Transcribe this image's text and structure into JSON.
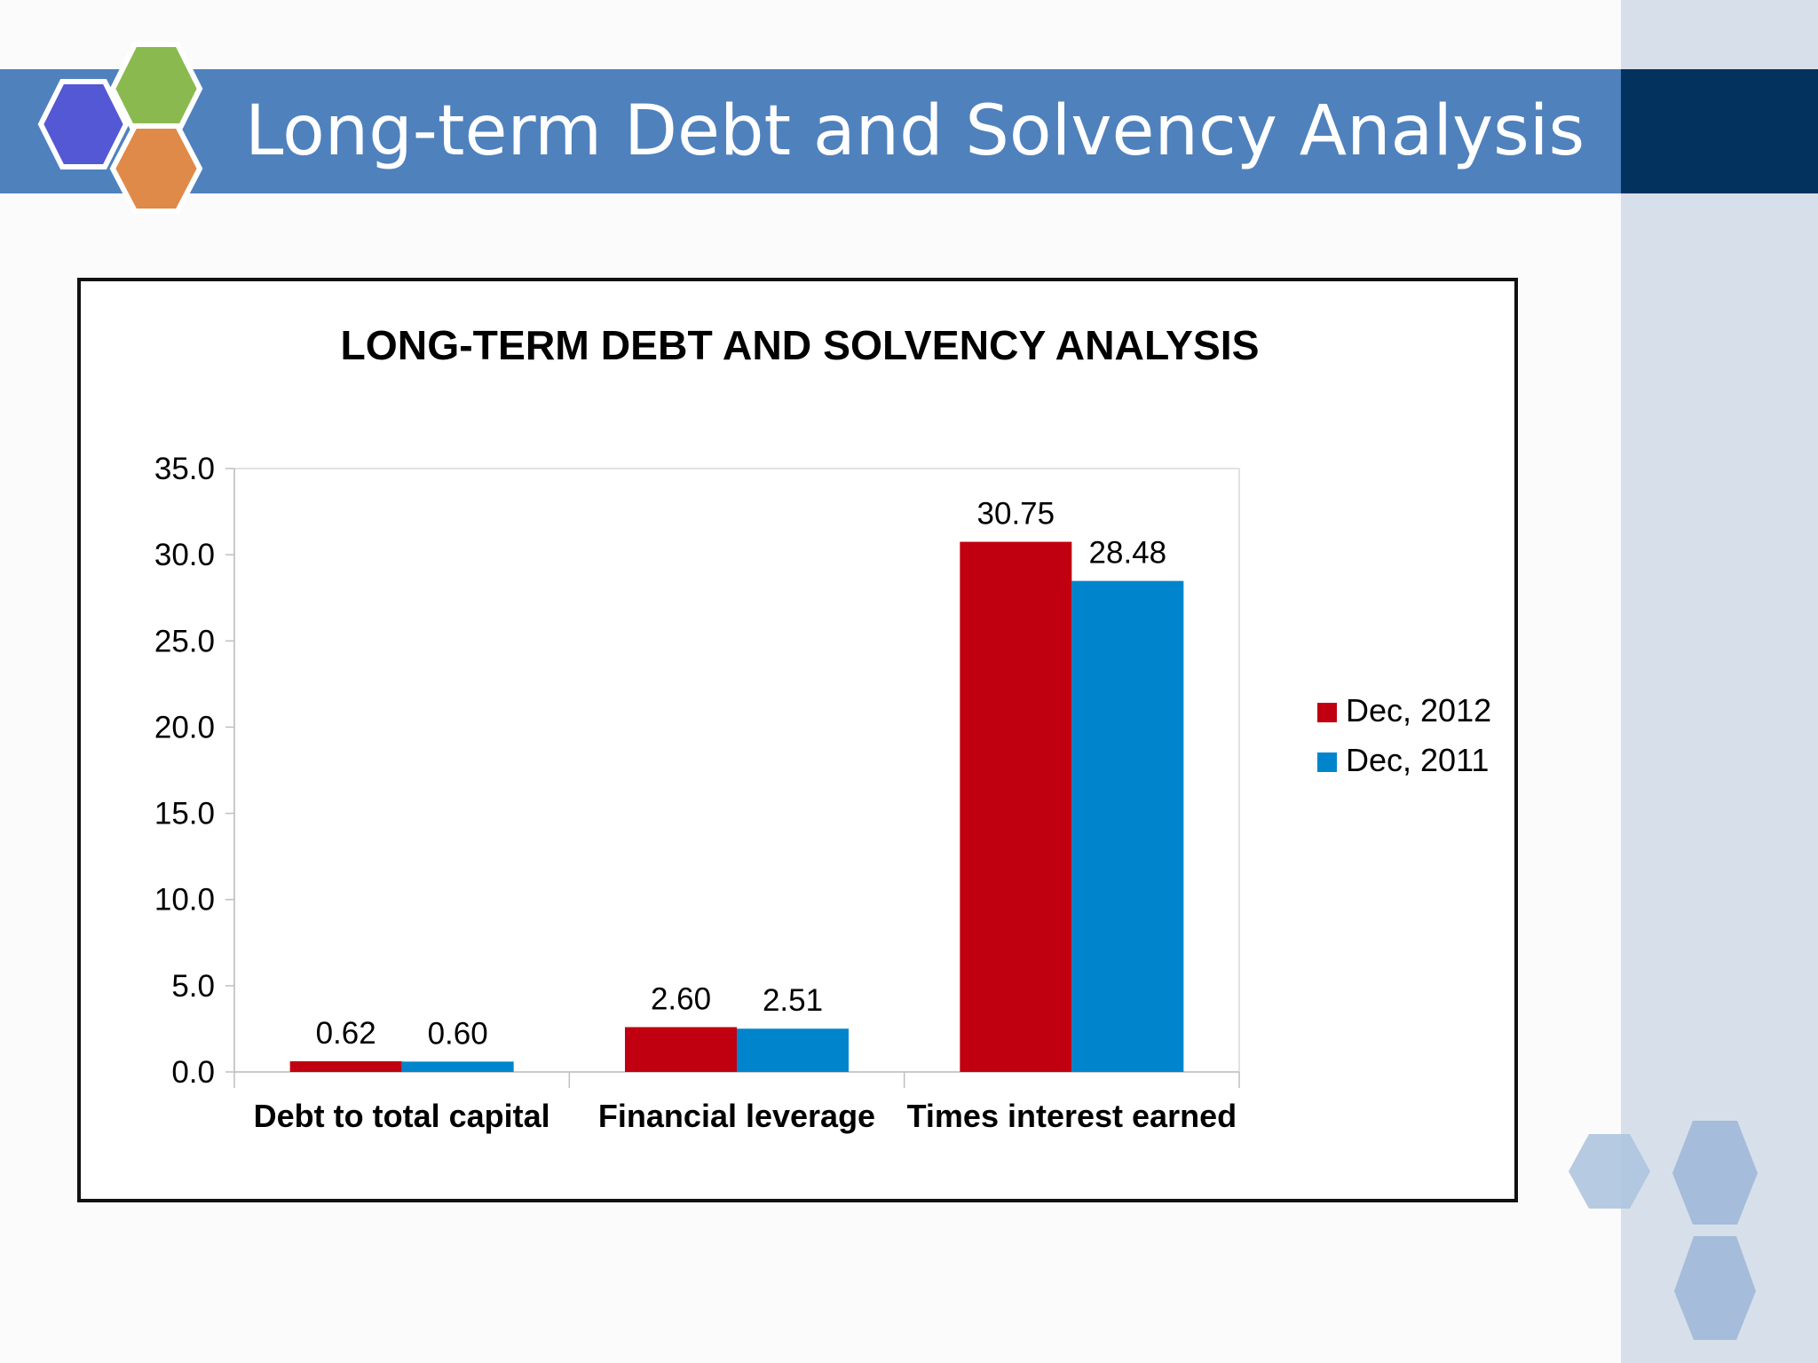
{
  "slide": {
    "title": "Long-term Debt and Solvency Analysis"
  },
  "theme": {
    "title_band_color": "#4f81bd",
    "title_band_dark_color": "#03325f",
    "side_panel_color": "#d7e0ea"
  },
  "chart_data": {
    "type": "bar",
    "title": "LONG-TERM DEBT AND SOLVENCY ANALYSIS",
    "xlabel": "",
    "ylabel": "",
    "categories": [
      "Debt to total capital",
      "Financial leverage",
      "Times interest earned"
    ],
    "series": [
      {
        "name": "Dec, 2012",
        "color": "#c00010",
        "values": [
          0.62,
          2.6,
          30.75
        ],
        "labels": [
          "0.62",
          "2.60",
          "30.75"
        ]
      },
      {
        "name": "Dec, 2011",
        "color": "#0085cc",
        "values": [
          0.6,
          2.51,
          28.48
        ],
        "labels": [
          "0.60",
          "2.51",
          "28.48"
        ]
      }
    ],
    "ylim": [
      0,
      35
    ],
    "yticks": [
      "0.0",
      "5.0",
      "10.0",
      "15.0",
      "20.0",
      "25.0",
      "30.0",
      "35.0"
    ],
    "grid": false,
    "legend_position": "right"
  }
}
